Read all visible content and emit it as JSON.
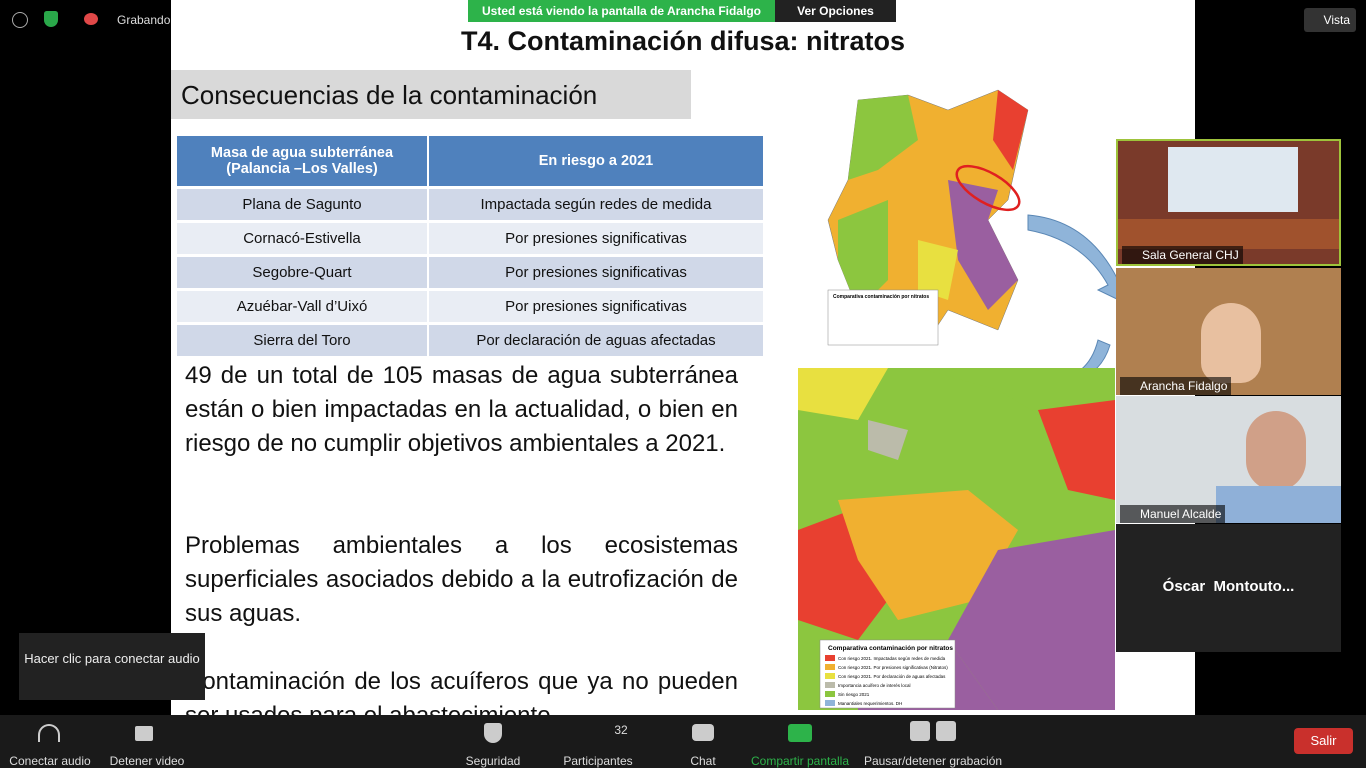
{
  "top_bar": {
    "recording": "Grabando...",
    "banner": "Usted está viendo la pantalla de Arancha Fidalgo",
    "view_options": "Ver Opciones",
    "view": "Vista"
  },
  "slide": {
    "title": "T4. Contaminación difusa: nitratos",
    "subtitle": "Consecuencias de la contaminación",
    "table": {
      "header": [
        "Masa de agua subterránea (Palancia –Los Valles)",
        "En riesgo a 2021"
      ],
      "rows": [
        [
          "Plana de Sagunto",
          "Impactada según redes de medida"
        ],
        [
          "Cornacó-Estivella",
          "Por presiones significativas"
        ],
        [
          "Segobre-Quart",
          "Por presiones significativas"
        ],
        [
          "Azuébar-Vall d’Uixó",
          "Por presiones significativas"
        ],
        [
          "Sierra del Toro",
          "Por declaración de aguas afectadas"
        ]
      ]
    },
    "paragraphs": [
      "49 de un total de 105 masas de agua subterránea están o bien impactadas en la actualidad, o bien en riesgo de no cumplir objetivos ambientales a 2021.",
      "Problemas ambientales a los ecosistemas superficiales asociados debido a la eutrofización de sus aguas.",
      "Contaminación de los acuíferos que ya no pueden ser usados para el abastecimiento."
    ],
    "map_legend": {
      "title": "Comparativa contaminación por nitratos",
      "items": [
        "Con riesgo 2021. Impactadas según redes de medida",
        "Con riesgo 2021. Por presiones significativas (Nitratos)",
        "Con riesgo 2021. Por declaración de aguas afectadas",
        "Importancia acuífero de interés local",
        "Sin riesgo 2021",
        "Manantiales requerimientos. DH"
      ]
    }
  },
  "participants": [
    "Sala General CHJ",
    "Arancha Fidalgo",
    "Manuel Alcalde",
    "Óscar  Montouto..."
  ],
  "tooltip": "Hacer clic para conectar audio",
  "toolbar": {
    "audio": "Conectar audio",
    "video": "Detener video",
    "security": "Seguridad",
    "participants": "Participantes",
    "participant_count": 32,
    "chat": "Chat",
    "share": "Compartir pantalla",
    "record": "Pausar/detener grabación",
    "leave": "Salir"
  }
}
